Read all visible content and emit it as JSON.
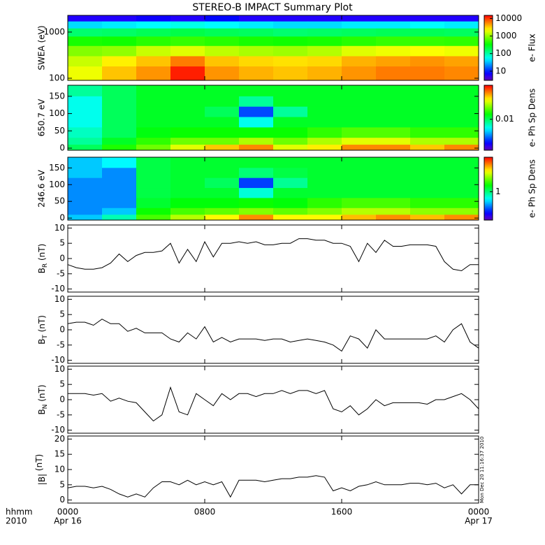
{
  "title": "STEREO-B IMPACT Summary Plot",
  "time_label": "hhmm",
  "year_label": "2010",
  "timestamp": "Mon Dec 20 11:16:37 2010",
  "chart_data": [
    {
      "type": "heatmap",
      "ylabel": "SWEA (eV)",
      "ylog": true,
      "ylim": [
        90,
        2300
      ],
      "yticks": [
        1000,
        100
      ],
      "xlim": [
        0,
        24
      ],
      "xbins": [
        0,
        2,
        4,
        6,
        8,
        10,
        12,
        14,
        16,
        18,
        20,
        22,
        24
      ],
      "ybins": [
        2300,
        1700,
        1200,
        800,
        500,
        300,
        180,
        90
      ],
      "zlog": true,
      "clim": [
        3,
        15000
      ],
      "cticks": [
        10,
        100,
        1000,
        10000
      ],
      "clabel": "e- Flux",
      "z": [
        [
          6,
          6,
          7,
          6,
          8,
          6,
          6,
          6,
          6,
          6,
          6,
          6
        ],
        [
          40,
          45,
          50,
          60,
          50,
          45,
          40,
          40,
          45,
          45,
          50,
          45
        ],
        [
          150,
          160,
          180,
          200,
          180,
          170,
          150,
          160,
          170,
          180,
          180,
          170
        ],
        [
          400,
          380,
          450,
          500,
          450,
          400,
          380,
          400,
          450,
          500,
          500,
          480
        ],
        [
          900,
          1000,
          1500,
          1800,
          1400,
          1200,
          1100,
          1300,
          1800,
          2000,
          2200,
          2000
        ],
        [
          1500,
          2500,
          3500,
          6000,
          3500,
          3000,
          2800,
          3000,
          4000,
          4500,
          5000,
          4500
        ],
        [
          2000,
          3500,
          5000,
          12000,
          5000,
          4000,
          3500,
          4000,
          5000,
          6000,
          6000,
          5500
        ]
      ]
    },
    {
      "type": "heatmap",
      "ylabel": "650.7 eV",
      "ylim": [
        -6,
        182
      ],
      "yticks": [
        0,
        50,
        100,
        150
      ],
      "xlim": [
        0,
        24
      ],
      "xbins": [
        0,
        2,
        4,
        6,
        8,
        10,
        12,
        14,
        16,
        18,
        20,
        22,
        24
      ],
      "ybins": [
        182,
        150,
        120,
        90,
        60,
        30,
        10,
        -6
      ],
      "zlog": true,
      "clim": [
        0.0015,
        0.08
      ],
      "cticks": [
        0.01
      ],
      "clabel": "e- Ph Sp Dens",
      "z": [
        [
          0.008,
          0.01,
          0.012,
          0.012,
          0.012,
          0.012,
          0.012,
          0.012,
          0.012,
          0.012,
          0.012,
          0.012
        ],
        [
          0.006,
          0.01,
          0.012,
          0.012,
          0.012,
          0.008,
          0.012,
          0.012,
          0.012,
          0.012,
          0.012,
          0.012
        ],
        [
          0.006,
          0.01,
          0.012,
          0.012,
          0.01,
          0.003,
          0.008,
          0.012,
          0.012,
          0.012,
          0.012,
          0.012
        ],
        [
          0.006,
          0.01,
          0.012,
          0.012,
          0.012,
          0.006,
          0.012,
          0.012,
          0.012,
          0.012,
          0.012,
          0.012
        ],
        [
          0.007,
          0.01,
          0.013,
          0.014,
          0.014,
          0.014,
          0.014,
          0.016,
          0.018,
          0.018,
          0.016,
          0.016
        ],
        [
          0.008,
          0.012,
          0.016,
          0.02,
          0.02,
          0.025,
          0.02,
          0.025,
          0.03,
          0.03,
          0.025,
          0.025
        ],
        [
          0.01,
          0.015,
          0.02,
          0.03,
          0.04,
          0.05,
          0.03,
          0.035,
          0.05,
          0.05,
          0.04,
          0.05
        ]
      ]
    },
    {
      "type": "heatmap",
      "ylabel": "246.6 eV",
      "ylim": [
        -6,
        182
      ],
      "yticks": [
        0,
        50,
        100,
        150
      ],
      "xlim": [
        0,
        24
      ],
      "xbins": [
        0,
        2,
        4,
        6,
        8,
        10,
        12,
        14,
        16,
        18,
        20,
        22,
        24
      ],
      "ybins": [
        182,
        150,
        120,
        90,
        60,
        30,
        10,
        -6
      ],
      "zlog": true,
      "clim": [
        0.15,
        10
      ],
      "cticks": [
        1
      ],
      "clabel": "e- Ph Sp Dens",
      "z": [
        [
          0.5,
          0.6,
          1.2,
          1.3,
          1.3,
          1.3,
          1.3,
          1.3,
          1.3,
          1.3,
          1.3,
          1.3
        ],
        [
          0.5,
          0.4,
          1.2,
          1.3,
          1.3,
          1,
          1.2,
          1.3,
          1.3,
          1.3,
          1.3,
          1.3
        ],
        [
          0.4,
          0.4,
          1.2,
          1.3,
          1.1,
          0.3,
          0.9,
          1.3,
          1.3,
          1.3,
          1.3,
          1.3
        ],
        [
          0.4,
          0.4,
          1.2,
          1.3,
          1.3,
          0.7,
          1.3,
          1.3,
          1.3,
          1.3,
          1.3,
          1.3
        ],
        [
          0.4,
          0.4,
          1.3,
          1.5,
          1.5,
          1.6,
          1.5,
          1.8,
          2,
          2,
          1.8,
          1.8
        ],
        [
          0.4,
          0.5,
          1.6,
          2,
          2.2,
          2.5,
          2.2,
          2.5,
          3,
          3,
          2.6,
          2.6
        ],
        [
          0.5,
          0.8,
          2,
          3,
          4,
          6,
          4,
          4,
          5,
          6,
          5,
          6
        ]
      ]
    },
    {
      "type": "line",
      "ylabel": {
        "main": "B",
        "sub": "R",
        "unit": " (nT)"
      },
      "ylim": [
        -11,
        11
      ],
      "yticks": [
        -10,
        -5,
        0,
        5,
        10
      ],
      "xlim": [
        0,
        24
      ],
      "color": "#000000",
      "x": [
        0,
        0.5,
        1,
        1.5,
        2,
        2.5,
        3,
        3.5,
        4,
        4.5,
        5,
        5.5,
        6,
        6.5,
        7,
        7.5,
        8,
        8.5,
        9,
        9.5,
        10,
        10.5,
        11,
        11.5,
        12,
        12.5,
        13,
        13.5,
        14,
        14.5,
        15,
        15.5,
        16,
        16.5,
        17,
        17.5,
        18,
        18.5,
        19,
        19.5,
        20,
        20.5,
        21,
        21.5,
        22,
        22.5,
        23,
        23.5,
        24
      ],
      "values": [
        -2,
        -3,
        -3.5,
        -3.5,
        -3,
        -1.5,
        1.5,
        -1,
        1,
        2,
        2,
        2.5,
        5,
        -1.5,
        3,
        -1,
        5.5,
        0.5,
        5,
        5,
        5.5,
        5,
        5.5,
        4.5,
        4.5,
        5,
        5,
        6.5,
        6.5,
        6,
        6,
        5,
        5,
        4,
        -1,
        5,
        2,
        6,
        4,
        4,
        4.5,
        4.5,
        4.5,
        4,
        -1,
        -3.5,
        -4,
        -2,
        -2
      ]
    },
    {
      "type": "line",
      "ylabel": {
        "main": "B",
        "sub": "T",
        "unit": " (nT)"
      },
      "ylim": [
        -11,
        11
      ],
      "yticks": [
        -10,
        -5,
        0,
        5,
        10
      ],
      "xlim": [
        0,
        24
      ],
      "color": "#000000",
      "x": [
        0,
        0.5,
        1,
        1.5,
        2,
        2.5,
        3,
        3.5,
        4,
        4.5,
        5,
        5.5,
        6,
        6.5,
        7,
        7.5,
        8,
        8.5,
        9,
        9.5,
        10,
        10.5,
        11,
        11.5,
        12,
        12.5,
        13,
        13.5,
        14,
        14.5,
        15,
        15.5,
        16,
        16.5,
        17,
        17.5,
        18,
        18.5,
        19,
        19.5,
        20,
        20.5,
        21,
        21.5,
        22,
        22.5,
        23,
        23.5,
        24
      ],
      "values": [
        2,
        2.5,
        2.5,
        1.5,
        3.5,
        2,
        2,
        -0.5,
        0.5,
        -1,
        -1,
        -1,
        -3,
        -4,
        -1,
        -3,
        1,
        -4,
        -2.5,
        -4,
        -3,
        -3,
        -3,
        -3.5,
        -3,
        -3,
        -4,
        -3.5,
        -3,
        -3.5,
        -4,
        -5,
        -7,
        -2,
        -3,
        -6,
        0,
        -3,
        -3,
        -3,
        -3,
        -3,
        -3,
        -2,
        -4,
        0,
        2,
        -4,
        -6
      ]
    },
    {
      "type": "line",
      "ylabel": {
        "main": "B",
        "sub": "N",
        "unit": " (nT)"
      },
      "ylim": [
        -11,
        11
      ],
      "yticks": [
        -10,
        -5,
        0,
        5,
        10
      ],
      "xlim": [
        0,
        24
      ],
      "color": "#000000",
      "x": [
        0,
        0.5,
        1,
        1.5,
        2,
        2.5,
        3,
        3.5,
        4,
        4.5,
        5,
        5.5,
        6,
        6.5,
        7,
        7.5,
        8,
        8.5,
        9,
        9.5,
        10,
        10.5,
        11,
        11.5,
        12,
        12.5,
        13,
        13.5,
        14,
        14.5,
        15,
        15.5,
        16,
        16.5,
        17,
        17.5,
        18,
        18.5,
        19,
        19.5,
        20,
        20.5,
        21,
        21.5,
        22,
        22.5,
        23,
        23.5,
        24
      ],
      "values": [
        2,
        2,
        2,
        1.5,
        2,
        -0.5,
        0.5,
        -0.5,
        -1,
        -4,
        -7,
        -5,
        4,
        -4,
        -5,
        2,
        0,
        -2,
        2,
        0,
        2,
        2,
        1,
        2,
        2,
        3,
        2,
        3,
        3,
        2,
        3,
        -3,
        -4,
        -2,
        -5,
        -3,
        0,
        -2,
        -1,
        -1,
        -1,
        -1,
        -1.5,
        0,
        0,
        1,
        2,
        0,
        -3
      ]
    },
    {
      "type": "line",
      "ylabel": {
        "main": "|B|",
        "sub": "",
        "unit": " (nT)"
      },
      "ylim": [
        -1,
        21
      ],
      "yticks": [
        0,
        5,
        10,
        15,
        20
      ],
      "xlim": [
        0,
        24
      ],
      "color": "#000000",
      "x": [
        0,
        0.5,
        1,
        1.5,
        2,
        2.5,
        3,
        3.5,
        4,
        4.5,
        5,
        5.5,
        6,
        6.5,
        7,
        7.5,
        8,
        8.5,
        9,
        9.5,
        10,
        10.5,
        11,
        11.5,
        12,
        12.5,
        13,
        13.5,
        14,
        14.5,
        15,
        15.5,
        16,
        16.5,
        17,
        17.5,
        18,
        18.5,
        19,
        19.5,
        20,
        20.5,
        21,
        21.5,
        22,
        22.5,
        23,
        23.5,
        24
      ],
      "values": [
        4,
        4.5,
        4.5,
        4,
        4.5,
        3.5,
        2,
        1,
        2,
        1,
        4,
        6,
        6,
        5,
        6.5,
        5,
        6,
        5,
        6,
        1,
        6.5,
        6.5,
        6.5,
        6,
        6.5,
        7,
        7,
        7.5,
        7.5,
        8,
        7.5,
        3,
        4,
        3,
        4.5,
        5,
        6,
        5,
        5,
        5,
        5.5,
        5.5,
        5,
        5.5,
        4,
        5,
        2,
        5,
        5
      ],
      "xticks": [
        {
          "value": 0,
          "label": "0000"
        },
        {
          "value": 8,
          "label": "0800"
        },
        {
          "value": 16,
          "label": "1600"
        },
        {
          "value": 24,
          "label": "0000"
        }
      ],
      "date_labels": [
        {
          "value": 0,
          "label": "Apr 16"
        },
        {
          "value": 24,
          "label": "Apr 17"
        }
      ]
    }
  ]
}
